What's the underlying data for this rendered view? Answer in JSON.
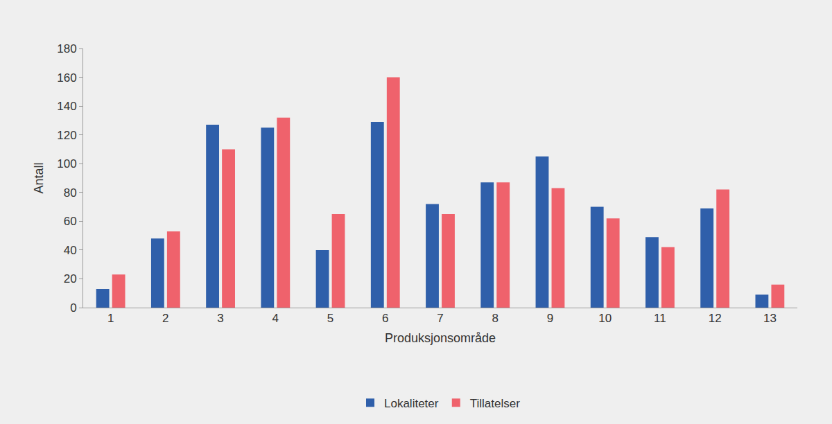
{
  "chart_data": {
    "type": "bar",
    "x_label": "Produksjonsområde",
    "y_label": "Antall",
    "categories": [
      "1",
      "2",
      "3",
      "4",
      "5",
      "6",
      "7",
      "8",
      "9",
      "10",
      "11",
      "12",
      "13"
    ],
    "series": [
      {
        "name": "Lokaliteter",
        "color": "#2f5faa",
        "values": [
          13,
          48,
          127,
          125,
          40,
          129,
          72,
          87,
          105,
          70,
          49,
          69,
          9
        ]
      },
      {
        "name": "Tillatelser",
        "color": "#ef626c",
        "values": [
          23,
          53,
          110,
          132,
          65,
          160,
          65,
          87,
          83,
          62,
          42,
          82,
          16
        ]
      }
    ],
    "ylim": [
      0,
      180
    ],
    "yticks": [
      0,
      20,
      40,
      60,
      80,
      100,
      120,
      140,
      160,
      180
    ],
    "grid": false,
    "legend": "bottom"
  }
}
